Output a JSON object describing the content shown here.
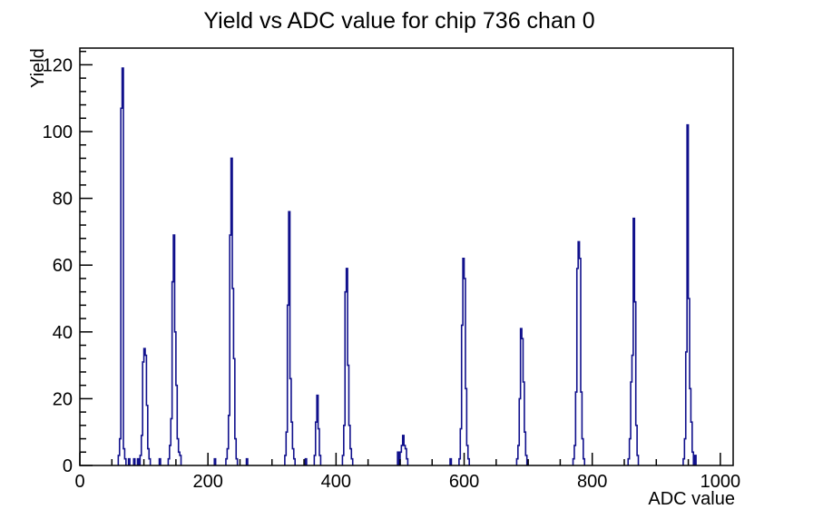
{
  "chart_data": {
    "type": "bar",
    "style": "root-histogram-step-outline",
    "title": "Yield vs ADC value for chip 736 chan 0",
    "xlabel": "ADC value",
    "ylabel": "Yield",
    "xlim": [
      0,
      1020
    ],
    "ylim": [
      0,
      125
    ],
    "x_major_ticks": [
      0,
      200,
      400,
      600,
      800,
      1000
    ],
    "x_minor_tick_step": 50,
    "y_major_ticks": [
      0,
      20,
      40,
      60,
      80,
      100,
      120
    ],
    "y_minor_tick_step": 4,
    "grid": false,
    "legend": false,
    "line_color": "#10108c",
    "axis_color": "#000000",
    "bin_width": 2,
    "bins": [
      [
        60,
        3
      ],
      [
        62,
        8
      ],
      [
        64,
        107
      ],
      [
        66,
        119
      ],
      [
        68,
        5
      ],
      [
        70,
        2
      ],
      [
        76,
        2
      ],
      [
        84,
        2
      ],
      [
        90,
        2
      ],
      [
        94,
        3
      ],
      [
        96,
        9
      ],
      [
        98,
        31
      ],
      [
        100,
        35
      ],
      [
        102,
        33
      ],
      [
        104,
        18
      ],
      [
        106,
        5
      ],
      [
        108,
        2
      ],
      [
        124,
        2
      ],
      [
        138,
        2
      ],
      [
        140,
        6
      ],
      [
        142,
        14
      ],
      [
        144,
        55
      ],
      [
        146,
        69
      ],
      [
        148,
        40
      ],
      [
        150,
        24
      ],
      [
        152,
        8
      ],
      [
        154,
        4
      ],
      [
        156,
        3
      ],
      [
        210,
        2
      ],
      [
        228,
        2
      ],
      [
        230,
        5
      ],
      [
        232,
        15
      ],
      [
        234,
        69
      ],
      [
        236,
        92
      ],
      [
        238,
        53
      ],
      [
        240,
        32
      ],
      [
        242,
        8
      ],
      [
        244,
        2
      ],
      [
        260,
        2
      ],
      [
        320,
        3
      ],
      [
        322,
        10
      ],
      [
        324,
        48
      ],
      [
        326,
        76
      ],
      [
        328,
        26
      ],
      [
        330,
        13
      ],
      [
        332,
        5
      ],
      [
        334,
        2
      ],
      [
        352,
        2
      ],
      [
        366,
        3
      ],
      [
        368,
        13
      ],
      [
        370,
        21
      ],
      [
        372,
        11
      ],
      [
        374,
        3
      ],
      [
        410,
        3
      ],
      [
        412,
        12
      ],
      [
        414,
        52
      ],
      [
        416,
        59
      ],
      [
        418,
        30
      ],
      [
        420,
        12
      ],
      [
        422,
        5
      ],
      [
        424,
        2
      ],
      [
        496,
        4
      ],
      [
        500,
        4
      ],
      [
        502,
        6
      ],
      [
        504,
        9
      ],
      [
        506,
        6
      ],
      [
        508,
        5
      ],
      [
        510,
        2
      ],
      [
        578,
        2
      ],
      [
        592,
        2
      ],
      [
        594,
        11
      ],
      [
        596,
        42
      ],
      [
        598,
        62
      ],
      [
        600,
        56
      ],
      [
        602,
        23
      ],
      [
        604,
        6
      ],
      [
        606,
        2
      ],
      [
        682,
        2
      ],
      [
        684,
        6
      ],
      [
        686,
        20
      ],
      [
        688,
        41
      ],
      [
        690,
        38
      ],
      [
        692,
        25
      ],
      [
        694,
        10
      ],
      [
        696,
        3
      ],
      [
        770,
        2
      ],
      [
        772,
        6
      ],
      [
        774,
        22
      ],
      [
        776,
        59
      ],
      [
        778,
        67
      ],
      [
        780,
        62
      ],
      [
        782,
        22
      ],
      [
        784,
        8
      ],
      [
        786,
        2
      ],
      [
        856,
        2
      ],
      [
        858,
        8
      ],
      [
        860,
        25
      ],
      [
        862,
        33
      ],
      [
        864,
        74
      ],
      [
        866,
        49
      ],
      [
        868,
        12
      ],
      [
        870,
        3
      ],
      [
        942,
        2
      ],
      [
        944,
        8
      ],
      [
        946,
        34
      ],
      [
        948,
        102
      ],
      [
        950,
        50
      ],
      [
        952,
        23
      ],
      [
        954,
        13
      ],
      [
        956,
        4
      ],
      [
        960,
        3
      ]
    ],
    "peaks": [
      {
        "adc": 66,
        "yield": 119
      },
      {
        "adc": 100,
        "yield": 35
      },
      {
        "adc": 146,
        "yield": 69
      },
      {
        "adc": 236,
        "yield": 92
      },
      {
        "adc": 326,
        "yield": 76
      },
      {
        "adc": 370,
        "yield": 21
      },
      {
        "adc": 416,
        "yield": 59
      },
      {
        "adc": 504,
        "yield": 9
      },
      {
        "adc": 598,
        "yield": 62
      },
      {
        "adc": 688,
        "yield": 41
      },
      {
        "adc": 778,
        "yield": 67
      },
      {
        "adc": 864,
        "yield": 74
      },
      {
        "adc": 948,
        "yield": 102
      }
    ]
  }
}
